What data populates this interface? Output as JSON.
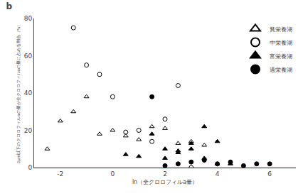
{
  "chart_data": {
    "type": "scatter",
    "title": "b",
    "xlabel": "ln（全クロロフィルa量）",
    "ylabel": "2μm以下のクロロフィルaの量が全クロロフィルaの量に占める割合（%）",
    "xlim": [
      -3,
      7
    ],
    "ylim": [
      0,
      80
    ],
    "xticks": [
      -2,
      0,
      2,
      4,
      6
    ],
    "yticks": [
      0,
      20,
      40,
      60,
      80
    ],
    "grid": false,
    "legend": "upper right",
    "series": [
      {
        "name": "貧栄養湖",
        "color": "black",
        "marker": "triangle-up-open",
        "x": [
          -2.5,
          -2.0,
          -1.5,
          -1.0,
          -0.5,
          0.0,
          0.5,
          1.0,
          1.5,
          2.0,
          2.5,
          3.0,
          3.5,
          4.0
        ],
        "values": [
          10,
          25,
          30,
          38,
          18,
          20,
          17,
          15,
          22,
          21,
          13,
          14,
          12,
          2
        ]
      },
      {
        "name": "中栄養湖",
        "color": "black",
        "marker": "circle-open",
        "x": [
          -1.5,
          -1.0,
          -0.5,
          0.0,
          0.5,
          1.0,
          1.5,
          2.0,
          2.5,
          3.0
        ],
        "values": [
          75,
          55,
          50,
          38,
          19,
          20,
          14,
          26,
          44,
          0
        ]
      },
      {
        "name": "富栄養湖",
        "color": "black",
        "marker": "triangle-up",
        "x": [
          0.5,
          1.0,
          1.5,
          2.0,
          2.0,
          2.5,
          2.5,
          3.0,
          3.0,
          3.5,
          3.5,
          4.0,
          4.5
        ],
        "values": [
          7,
          6,
          18,
          10,
          5,
          9,
          8,
          10,
          13,
          22,
          5,
          14,
          2
        ]
      },
      {
        "name": "過栄養湖",
        "color": "black",
        "marker": "circle",
        "x": [
          1.5,
          2.0,
          2.5,
          3.0,
          3.5,
          4.0,
          4.5,
          5.0,
          5.5,
          6.0
        ],
        "values": [
          38,
          1,
          2,
          3,
          4,
          2,
          3,
          1,
          2,
          2
        ]
      }
    ],
    "hlines": [
      {
        "y": 0,
        "color": "gold"
      }
    ]
  }
}
